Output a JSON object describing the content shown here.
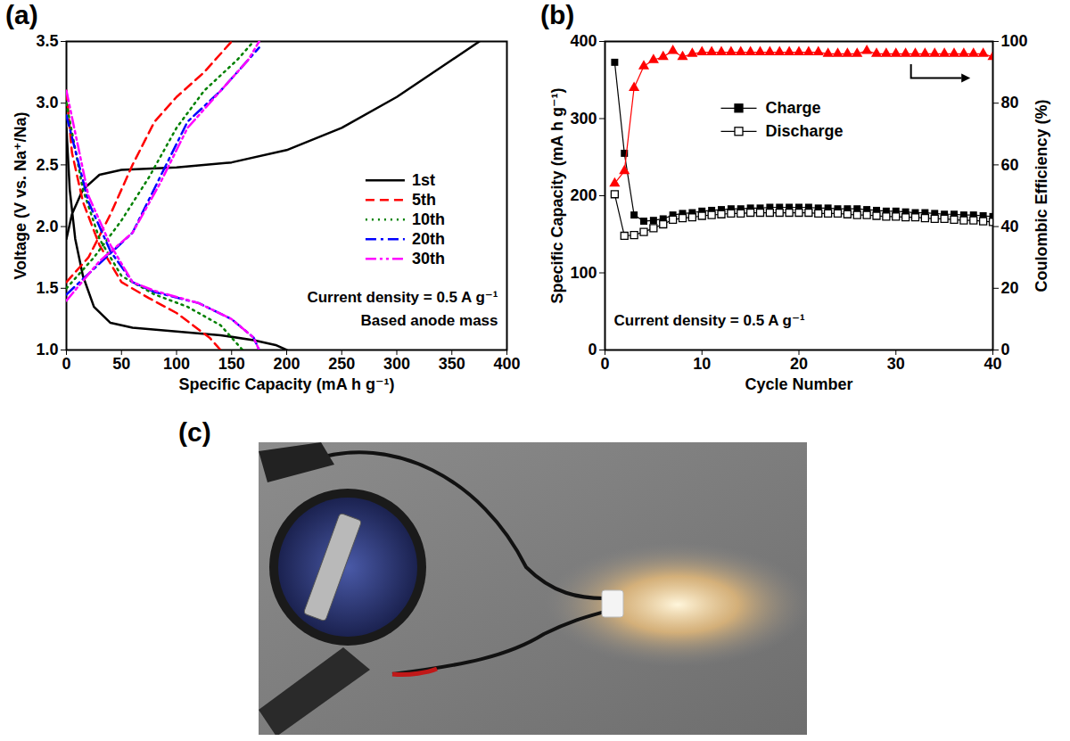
{
  "chart_data": [
    {
      "type": "line",
      "title": "(a)",
      "x_label": "Specific Capacity (mA h g⁻¹)",
      "y_label": "Voltage (V vs. Na⁺/Na)",
      "xlim": [
        0,
        400
      ],
      "xticks": [
        0,
        50,
        100,
        150,
        200,
        250,
        300,
        350,
        400
      ],
      "ylim": [
        1.0,
        3.5
      ],
      "yticks": [
        {
          "value": 1.0,
          "label": "1.0"
        },
        1.5,
        {
          "value": 2.0,
          "label": "2.0"
        },
        2.5,
        {
          "value": 3.0,
          "label": "3.0"
        },
        3.5
      ],
      "legend": "right",
      "annotations": [
        "Current density = 0.5 A g⁻¹",
        "Based anode mass"
      ],
      "series": [
        {
          "name": "1st",
          "color": "#000000",
          "line_style": "solid",
          "x": [
            0,
            3,
            8,
            15,
            25,
            40,
            60,
            100,
            140,
            170,
            190,
            200,
            null,
            0,
            5,
            15,
            30,
            50,
            100,
            150,
            200,
            250,
            300,
            350,
            375
          ],
          "values": [
            2.8,
            2.3,
            1.9,
            1.6,
            1.35,
            1.22,
            1.18,
            1.15,
            1.12,
            1.08,
            1.04,
            1.0,
            null,
            1.9,
            2.1,
            2.3,
            2.42,
            2.46,
            2.48,
            2.52,
            2.62,
            2.8,
            3.05,
            3.35,
            3.5
          ]
        },
        {
          "name": "5th",
          "color": "#ff0000",
          "line_style": "dashed",
          "x": [
            0,
            5,
            15,
            30,
            50,
            75,
            100,
            130,
            140,
            null,
            0,
            20,
            40,
            60,
            80,
            100,
            125,
            150
          ],
          "values": [
            3.1,
            2.6,
            2.2,
            1.85,
            1.55,
            1.42,
            1.3,
            1.1,
            1.0,
            null,
            1.55,
            1.75,
            2.1,
            2.5,
            2.85,
            3.05,
            3.25,
            3.5
          ]
        },
        {
          "name": "10th",
          "color": "#008000",
          "line_style": "dotted",
          "x": [
            0,
            15,
            30,
            50,
            80,
            110,
            140,
            160,
            null,
            0,
            25,
            50,
            75,
            100,
            125,
            155,
            170
          ],
          "values": [
            3.0,
            2.3,
            1.9,
            1.6,
            1.45,
            1.35,
            1.2,
            1.0,
            null,
            1.5,
            1.75,
            2.05,
            2.4,
            2.8,
            3.1,
            3.35,
            3.5
          ]
        },
        {
          "name": "20th",
          "color": "#0000ff",
          "line_style": "dashdot",
          "x": [
            0,
            20,
            40,
            60,
            80,
            120,
            150,
            170,
            175,
            null,
            0,
            30,
            60,
            85,
            110,
            140,
            160,
            175
          ],
          "values": [
            2.9,
            2.2,
            1.8,
            1.55,
            1.47,
            1.38,
            1.25,
            1.1,
            1.0,
            null,
            1.45,
            1.7,
            1.95,
            2.4,
            2.85,
            3.1,
            3.3,
            3.45
          ]
        },
        {
          "name": "30th",
          "color": "#ff00ff",
          "line_style": "dashdotdot",
          "x": [
            0,
            20,
            40,
            60,
            80,
            120,
            150,
            170,
            175,
            null,
            0,
            30,
            60,
            85,
            110,
            140,
            165,
            175
          ],
          "values": [
            3.1,
            2.25,
            1.85,
            1.55,
            1.48,
            1.38,
            1.25,
            1.1,
            1.0,
            null,
            1.4,
            1.72,
            1.95,
            2.35,
            2.8,
            3.1,
            3.35,
            3.5
          ]
        }
      ]
    },
    {
      "type": "line",
      "title": "(b)",
      "x_label": "Cycle Number",
      "y_label": "Specific Capacity (mA h g⁻¹)",
      "y2_label": "Coulombic Efficiency (%)",
      "x": [
        1,
        2,
        3,
        4,
        5,
        6,
        7,
        8,
        9,
        10,
        11,
        12,
        13,
        14,
        15,
        16,
        17,
        18,
        19,
        20,
        21,
        22,
        23,
        24,
        25,
        26,
        27,
        28,
        29,
        30,
        31,
        32,
        33,
        34,
        35,
        36,
        37,
        38,
        39,
        40
      ],
      "xlim": [
        0,
        40
      ],
      "xticks": [
        0,
        10,
        20,
        30,
        40
      ],
      "ylim": [
        0,
        400
      ],
      "yticks": [
        0,
        100,
        200,
        300,
        400
      ],
      "y2lim": [
        0,
        100
      ],
      "y2ticks": [
        0,
        20,
        40,
        60,
        80,
        100
      ],
      "legend": "top",
      "annotations": [
        "Current density = 0.5 A g⁻¹"
      ],
      "series": [
        {
          "name": "Charge",
          "color": "#000000",
          "marker": "square",
          "values": [
            373,
            255,
            175,
            167,
            168,
            170,
            175,
            177,
            178,
            180,
            181,
            182,
            183,
            183,
            184,
            184,
            185,
            185,
            185,
            185,
            185,
            184,
            184,
            183,
            183,
            183,
            182,
            181,
            180,
            180,
            179,
            178,
            178,
            177,
            176,
            176,
            175,
            175,
            174,
            173
          ]
        },
        {
          "name": "Discharge",
          "color": "#000000",
          "marker": "open-square",
          "values": [
            202,
            148,
            149,
            153,
            158,
            163,
            169,
            171,
            172,
            174,
            175,
            176,
            177,
            177,
            178,
            178,
            178,
            178,
            178,
            178,
            178,
            177,
            177,
            177,
            176,
            175,
            175,
            174,
            173,
            173,
            172,
            172,
            171,
            170,
            170,
            169,
            168,
            168,
            167,
            166
          ]
        },
        {
          "color": "#ff0000",
          "marker": "triangle",
          "axis": "y2",
          "values": [
            54,
            58,
            85,
            92,
            94,
            95,
            97,
            95,
            96,
            96.5,
            96.5,
            96.5,
            96.5,
            96.5,
            96.5,
            96.5,
            96.5,
            96.5,
            96.5,
            96.5,
            96.5,
            96.5,
            96,
            96,
            96,
            96,
            97,
            96,
            96,
            96,
            96,
            96,
            96,
            96,
            96,
            96,
            96,
            96,
            96,
            95
          ]
        }
      ]
    },
    {
      "type": "image",
      "title": "(c)"
    }
  ]
}
